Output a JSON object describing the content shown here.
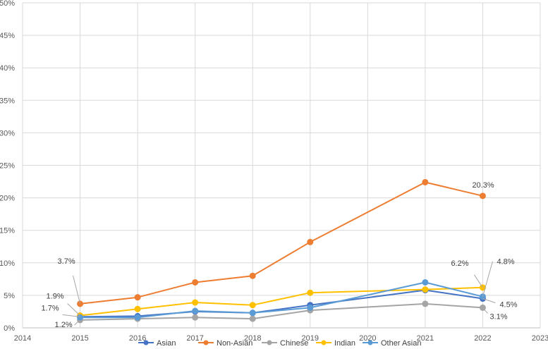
{
  "chart_data": {
    "type": "line",
    "title": "",
    "xlabel": "",
    "ylabel": "",
    "xlim": [
      2014,
      2023
    ],
    "ylim": [
      0,
      50
    ],
    "x_ticks": [
      "2014",
      "2015",
      "2016",
      "2017",
      "2018",
      "2019",
      "2020",
      "2021",
      "2022",
      "2023"
    ],
    "y_ticks": [
      "0%",
      "5%",
      "10%",
      "15%",
      "20%",
      "25%",
      "30%",
      "35%",
      "40%",
      "45%",
      "50%"
    ],
    "grid": true,
    "legend_position": "bottom",
    "x": [
      2015,
      2016,
      2017,
      2018,
      2019,
      2021,
      2022
    ],
    "series": [
      {
        "name": "Asian",
        "color": "#4472C4",
        "values": [
          1.7,
          1.8,
          2.5,
          2.3,
          3.5,
          5.8,
          4.5
        ]
      },
      {
        "name": "Non-Asian",
        "color": "#ED7D31",
        "values": [
          3.7,
          4.7,
          7.0,
          8.0,
          13.2,
          22.4,
          20.3
        ]
      },
      {
        "name": "Chinese",
        "color": "#A5A5A5",
        "values": [
          1.2,
          1.4,
          1.6,
          1.4,
          2.7,
          3.7,
          3.1
        ]
      },
      {
        "name": "Indian",
        "color": "#FFC000",
        "values": [
          1.9,
          2.9,
          3.9,
          3.5,
          5.4,
          5.9,
          6.2
        ]
      },
      {
        "name": "Other Asian",
        "color": "#5B9BD5",
        "values": [
          1.6,
          1.6,
          2.6,
          2.3,
          3.1,
          7.0,
          4.8
        ]
      }
    ],
    "annotations": [
      {
        "text": "3.7%",
        "x": 2015,
        "y": 3.7
      },
      {
        "text": "1.9%",
        "x": 2015,
        "y": 1.9
      },
      {
        "text": "1.7%",
        "x": 2015,
        "y": 1.7
      },
      {
        "text": "1.2%",
        "x": 2015,
        "y": 1.2
      },
      {
        "text": "20.3%",
        "x": 2022,
        "y": 20.3
      },
      {
        "text": "6.2%",
        "x": 2022,
        "y": 6.2
      },
      {
        "text": "4.8%",
        "x": 2022,
        "y": 4.8
      },
      {
        "text": "4.5%",
        "x": 2022,
        "y": 4.5
      },
      {
        "text": "3.1%",
        "x": 2022,
        "y": 3.1
      }
    ]
  }
}
